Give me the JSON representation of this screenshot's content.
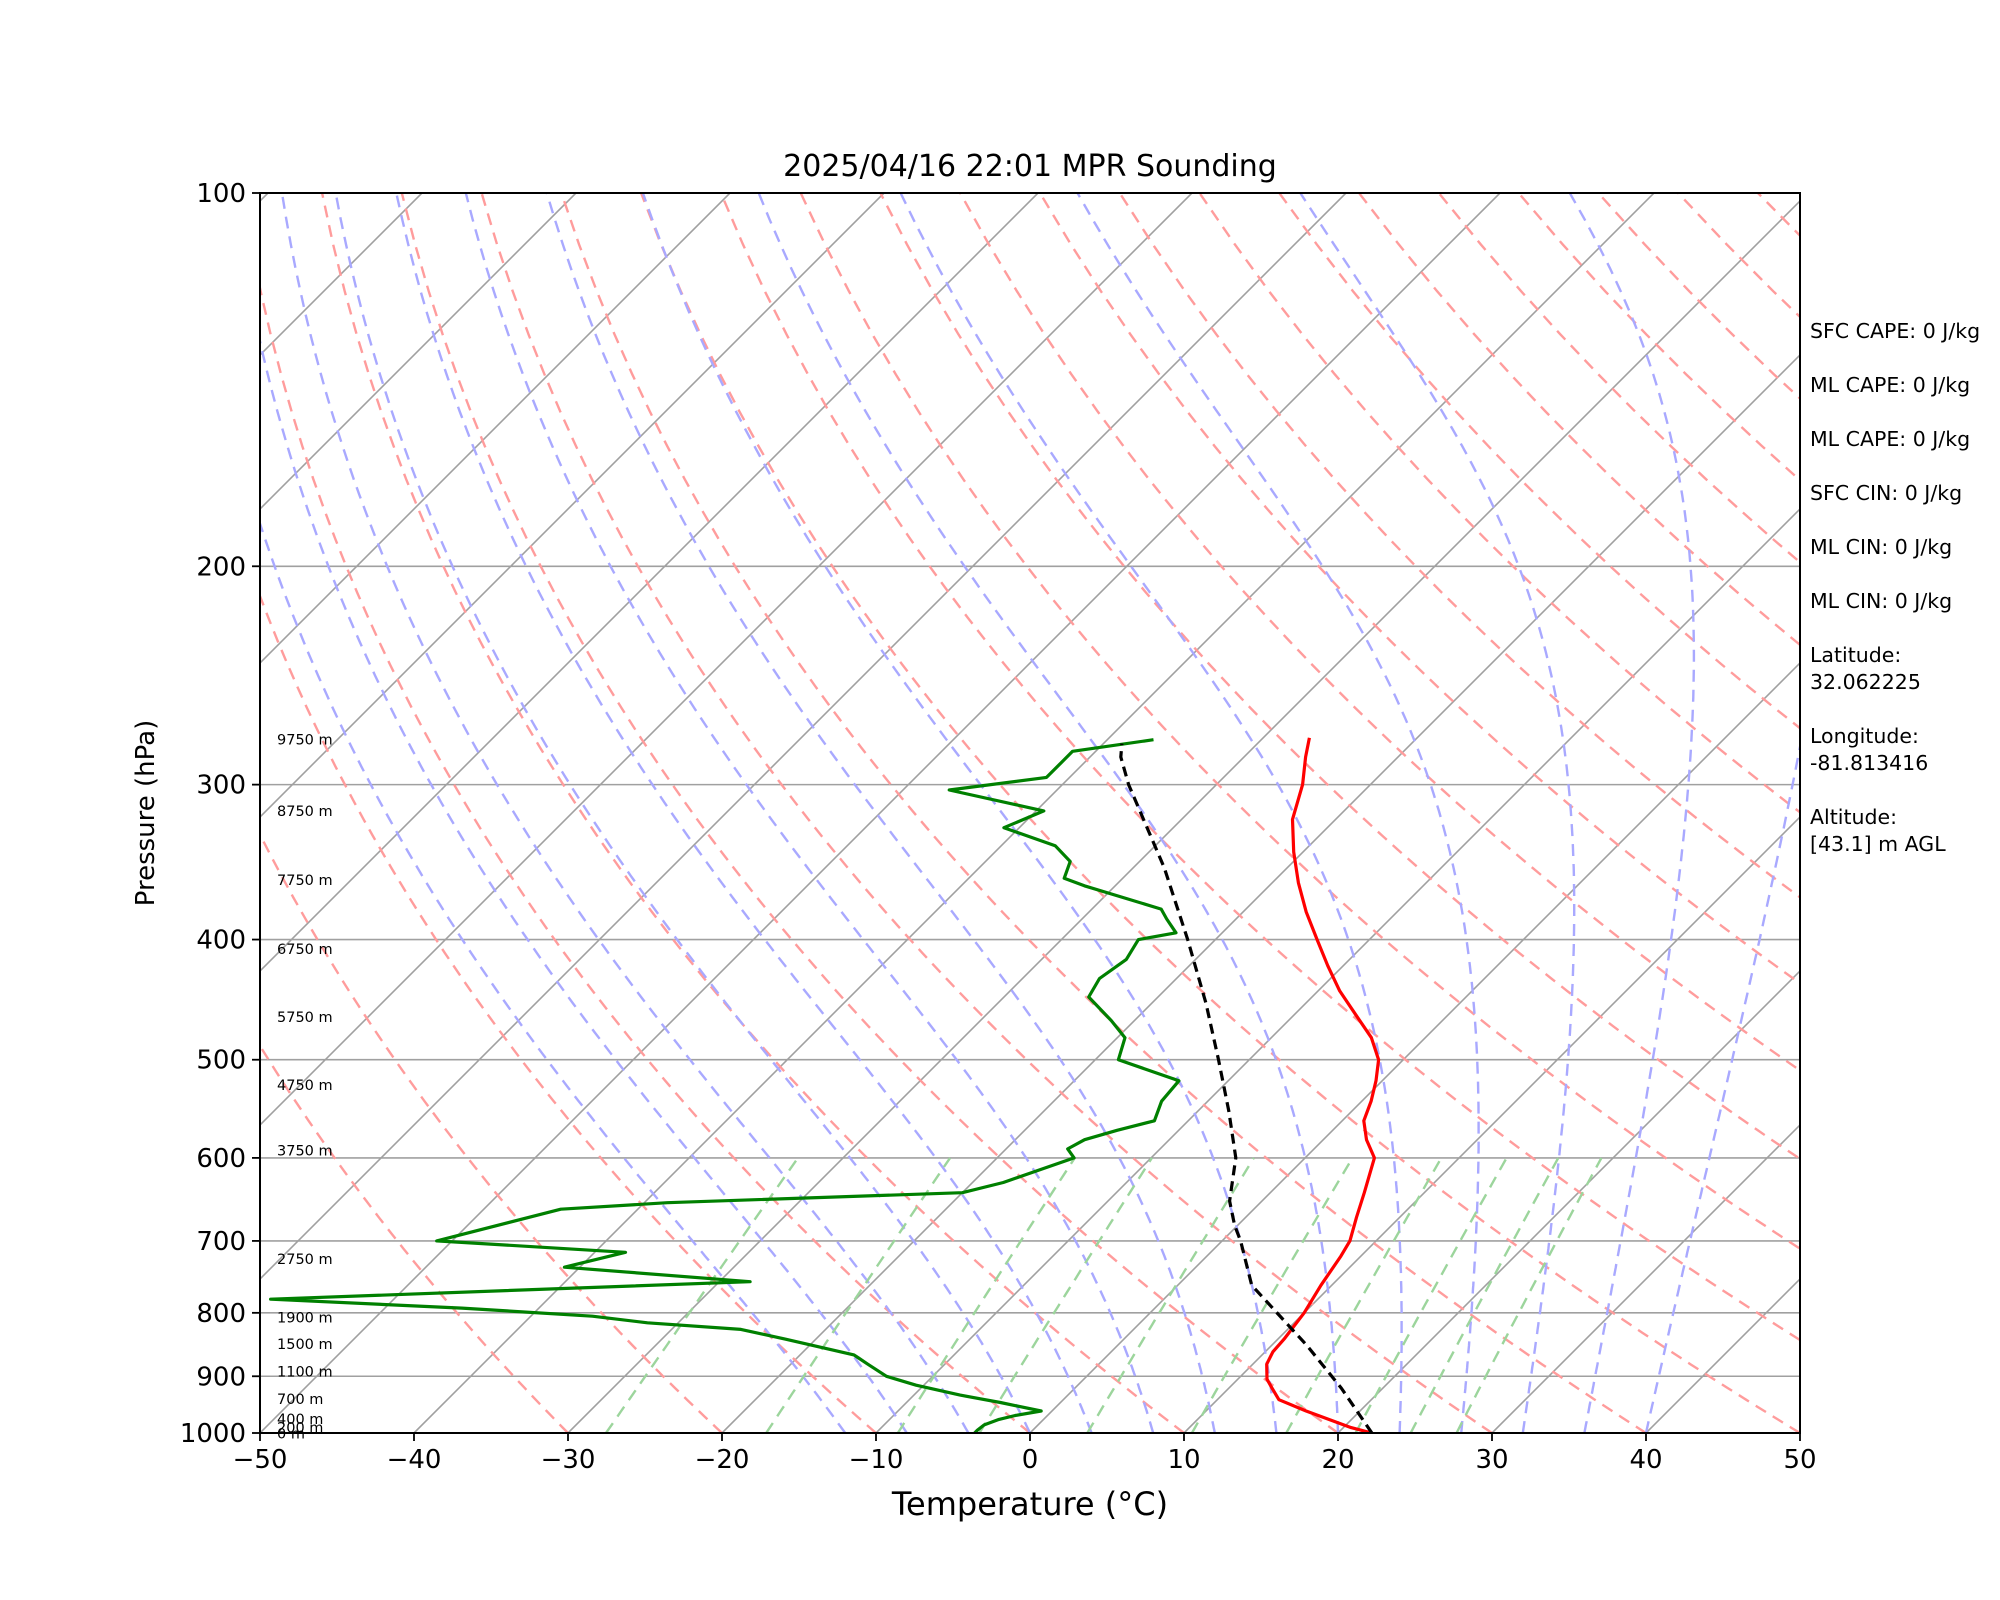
{
  "chart_data": {
    "type": "line",
    "subtype": "skew-T log-P sounding",
    "title": "2025/04/16 22:01 MPR Sounding",
    "xlabel": "Temperature (°C)",
    "ylabel": "Pressure (hPa)",
    "xlim": [
      -50,
      50
    ],
    "ylim": [
      1000,
      100
    ],
    "y_scale": "log",
    "grid": true,
    "x_ticks": [
      "−50",
      "−40",
      "−30",
      "−20",
      "−10",
      "0",
      "10",
      "20",
      "30",
      "40",
      "50"
    ],
    "y_ticks": [
      "100",
      "200",
      "300",
      "400",
      "500",
      "600",
      "700",
      "800",
      "900",
      "1000"
    ],
    "height_labels": [
      {
        "text": "9750 m",
        "p": 276
      },
      {
        "text": "8750 m",
        "p": 315
      },
      {
        "text": "7750 m",
        "p": 358
      },
      {
        "text": "6750 m",
        "p": 407
      },
      {
        "text": "5750 m",
        "p": 462
      },
      {
        "text": "4750 m",
        "p": 524
      },
      {
        "text": "3750 m",
        "p": 592
      },
      {
        "text": "2750 m",
        "p": 724
      },
      {
        "text": "1900 m",
        "p": 807
      },
      {
        "text": "1500 m",
        "p": 848
      },
      {
        "text": "1100 m",
        "p": 892
      },
      {
        "text": "700 m",
        "p": 939
      },
      {
        "text": "400 m",
        "p": 974
      },
      {
        "text": "200 m",
        "p": 990
      },
      {
        "text": "0 m",
        "p": 1001
      }
    ],
    "series": [
      {
        "key": "temperature",
        "color": "#ff0000",
        "points": [
          [
            22.2,
            1000
          ],
          [
            20.5,
            990
          ],
          [
            16.5,
            960
          ],
          [
            14,
            940
          ],
          [
            12.8,
            920
          ],
          [
            11.9,
            905
          ],
          [
            10.9,
            880
          ],
          [
            10.5,
            860
          ],
          [
            10.4,
            840
          ],
          [
            10.2,
            820
          ],
          [
            10.0,
            800
          ],
          [
            9.3,
            760
          ],
          [
            8.7,
            720
          ],
          [
            8.3,
            700
          ],
          [
            7.2,
            670
          ],
          [
            6.1,
            640
          ],
          [
            4.5,
            600
          ],
          [
            2.8,
            580
          ],
          [
            1.4,
            560
          ],
          [
            0.6,
            540
          ],
          [
            -0.4,
            520
          ],
          [
            -1.6,
            500
          ],
          [
            -3.5,
            480
          ],
          [
            -6.0,
            460
          ],
          [
            -8.6,
            440
          ],
          [
            -11.0,
            420
          ],
          [
            -13.4,
            400
          ],
          [
            -15.9,
            380
          ],
          [
            -18.3,
            360
          ],
          [
            -20.6,
            340
          ],
          [
            -22.8,
            320
          ],
          [
            -24.4,
            300
          ],
          [
            -26.0,
            285
          ],
          [
            -27.0,
            275
          ]
        ]
      },
      {
        "key": "dewpoint",
        "color": "#008000",
        "points": [
          [
            -3.6,
            1000
          ],
          [
            -3.6,
            995
          ],
          [
            -3.5,
            985
          ],
          [
            -2.9,
            975
          ],
          [
            -2.1,
            968
          ],
          [
            -0.7,
            960
          ],
          [
            -3.9,
            945
          ],
          [
            -7.0,
            932
          ],
          [
            -10.5,
            915
          ],
          [
            -13.0,
            900
          ],
          [
            -15.0,
            880
          ],
          [
            -16.0,
            870
          ],
          [
            -16.5,
            865
          ],
          [
            -22.0,
            840
          ],
          [
            -25.5,
            825
          ],
          [
            -32.0,
            815
          ],
          [
            -36.0,
            805
          ],
          [
            -45.0,
            793
          ],
          [
            -58.0,
            780
          ],
          [
            -28.0,
            755
          ],
          [
            -41.0,
            735
          ],
          [
            -38.0,
            715
          ],
          [
            -51.0,
            700
          ],
          [
            -45.0,
            660
          ],
          [
            -38.5,
            652
          ],
          [
            -20.0,
            640
          ],
          [
            -18.0,
            628
          ],
          [
            -15.0,
            600
          ],
          [
            -16.0,
            590
          ],
          [
            -15.5,
            580
          ],
          [
            -14.0,
            570
          ],
          [
            -12.2,
            560
          ],
          [
            -13.0,
            540
          ],
          [
            -13.2,
            520
          ],
          [
            -18.5,
            500
          ],
          [
            -19.5,
            480
          ],
          [
            -21.5,
            465
          ],
          [
            -24.5,
            445
          ],
          [
            -25.0,
            430
          ],
          [
            -24.5,
            415
          ],
          [
            -25.0,
            400
          ],
          [
            -23.0,
            395
          ],
          [
            -24.5,
            385
          ],
          [
            -25.5,
            378
          ],
          [
            -32.0,
            362
          ],
          [
            -33.8,
            357
          ],
          [
            -34.5,
            346
          ],
          [
            -36.5,
            336
          ],
          [
            -41.0,
            325
          ],
          [
            -39.5,
            315
          ],
          [
            -47.0,
            303
          ],
          [
            -41.5,
            296
          ],
          [
            -41.5,
            288
          ],
          [
            -41.5,
            282
          ],
          [
            -37.0,
            276
          ]
        ]
      },
      {
        "key": "parcel",
        "color": "#000000",
        "points": [
          [
            22.2,
            1000
          ],
          [
            17.3,
            920
          ],
          [
            12.3,
            850
          ],
          [
            4.8,
            760
          ],
          [
            1.2,
            700
          ],
          [
            -0.2,
            680
          ],
          [
            -2.1,
            650
          ],
          [
            -4.5,
            600
          ],
          [
            -8.0,
            550
          ],
          [
            -12.0,
            500
          ],
          [
            -16.5,
            450
          ],
          [
            -21.8,
            400
          ],
          [
            -28.0,
            350
          ],
          [
            -35.7,
            300
          ],
          [
            -38.0,
            285
          ],
          [
            -38.8,
            278
          ]
        ]
      }
    ],
    "reference_lines": {
      "isotherms_color": "#a0a0a0",
      "dry_adiabats_color": "#ff9c9c",
      "moist_adiabats_color": "#a9a9ff",
      "mixing_ratio_color": "#9cd59c"
    }
  },
  "side_panel": {
    "stats": [
      "SFC CAPE: 0 J/kg",
      "ML CAPE: 0 J/kg",
      "ML CAPE: 0 J/kg",
      "SFC CIN: 0 J/kg",
      "ML CIN: 0 J/kg",
      "ML CIN: 0 J/kg"
    ],
    "latitude_label": "Latitude:",
    "latitude_value": "32.062225",
    "longitude_label": "Longitude:",
    "longitude_value": "-81.813416",
    "altitude_label": "Altitude:",
    "altitude_value": "[43.1] m AGL"
  }
}
